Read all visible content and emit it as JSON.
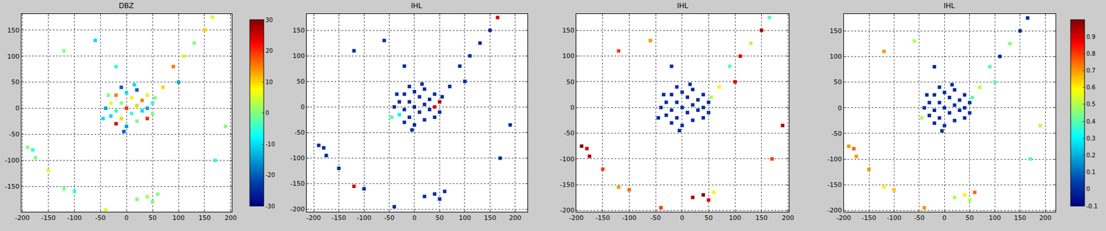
{
  "chart_data": [
    {
      "type": "scatter",
      "title": "DBZ",
      "xlim": [
        -202,
        202
      ],
      "ylim": [
        -199,
        181
      ],
      "xticks": [
        -200,
        -150,
        -100,
        -50,
        0,
        50,
        100,
        150,
        200
      ],
      "yticks": [
        -150,
        -100,
        -50,
        0,
        50,
        100,
        150
      ],
      "grid": true,
      "points": {
        "x": [
          -40,
          -30,
          -30,
          -20,
          -20,
          -20,
          -10,
          -10,
          -10,
          0,
          0,
          0,
          10,
          10,
          20,
          20,
          20,
          30,
          30,
          40,
          40,
          40,
          50,
          50,
          -45,
          -5,
          15,
          -35,
          55,
          70,
          90,
          110,
          130,
          150,
          165,
          -120,
          -60,
          -20,
          100,
          -190,
          -180,
          -175,
          -150,
          -120,
          -100,
          20,
          40,
          50,
          -40,
          60,
          190,
          170
        ],
        "y": [
          0,
          10,
          -15,
          25,
          -5,
          -30,
          40,
          10,
          -20,
          30,
          0,
          -35,
          20,
          -10,
          35,
          5,
          -25,
          15,
          -5,
          25,
          0,
          -20,
          10,
          -10,
          -20,
          -45,
          45,
          25,
          20,
          40,
          80,
          100,
          125,
          150,
          175,
          110,
          130,
          80,
          50,
          -75,
          -80,
          -95,
          -120,
          -155,
          -160,
          -175,
          -170,
          -180,
          -195,
          -165,
          -35,
          -100
        ],
        "values": [
          -15,
          5,
          -10,
          15,
          -5,
          25,
          -20,
          0,
          10,
          -10,
          20,
          -15,
          5,
          -5,
          -20,
          10,
          0,
          15,
          -10,
          5,
          -15,
          20,
          -5,
          0,
          -10,
          -20,
          -10,
          0,
          0,
          10,
          15,
          5,
          0,
          10,
          5,
          0,
          -10,
          -5,
          -15,
          0,
          -5,
          0,
          5,
          0,
          -5,
          0,
          2,
          0,
          5,
          0,
          0,
          -5
        ]
      },
      "colorbar": {
        "range": [
          -30,
          30
        ],
        "ticks": [
          -30,
          -20,
          -10,
          0,
          10,
          20,
          30
        ]
      }
    },
    {
      "type": "scatter",
      "title": "IHL",
      "xlim": [
        -214,
        224
      ],
      "ylim": [
        -205,
        182
      ],
      "xticks": [
        -200,
        -150,
        -100,
        -50,
        0,
        50,
        100,
        150,
        200
      ],
      "yticks": [
        -200,
        -150,
        -100,
        -50,
        0,
        50,
        100,
        150
      ],
      "grid": true,
      "points": {
        "x": [
          -40,
          -30,
          -30,
          -20,
          -20,
          -20,
          -10,
          -10,
          -10,
          0,
          0,
          0,
          10,
          10,
          20,
          20,
          20,
          30,
          30,
          40,
          40,
          40,
          50,
          50,
          -45,
          -5,
          15,
          -35,
          55,
          70,
          90,
          110,
          130,
          150,
          165,
          -120,
          -60,
          -20,
          100,
          -190,
          -180,
          -175,
          -150,
          -120,
          -100,
          20,
          40,
          50,
          -40,
          60,
          190,
          170
        ],
        "y": [
          0,
          10,
          -15,
          25,
          -5,
          -30,
          40,
          10,
          -20,
          30,
          0,
          -35,
          20,
          -10,
          35,
          5,
          -25,
          15,
          -5,
          25,
          0,
          -20,
          10,
          -10,
          -20,
          -45,
          45,
          25,
          20,
          40,
          80,
          100,
          125,
          150,
          175,
          110,
          130,
          80,
          50,
          -75,
          -80,
          -95,
          -120,
          -155,
          -160,
          -175,
          -170,
          -180,
          -195,
          -165,
          -35,
          -100
        ],
        "values": [
          0,
          0,
          0.3,
          0,
          0,
          0,
          0,
          0,
          0,
          0,
          0,
          0,
          0,
          0,
          0,
          0,
          0,
          0,
          0,
          0,
          0.9,
          0,
          0.95,
          0,
          0.4,
          0,
          0,
          0,
          0,
          0,
          0,
          0,
          0,
          0,
          0.9,
          0,
          0,
          0,
          0,
          0,
          0,
          0,
          0,
          0.9,
          0,
          0,
          0,
          0,
          0,
          0,
          0,
          0
        ]
      },
      "color_range": [
        -0.1,
        1
      ]
    },
    {
      "type": "scatter",
      "title": "IHL",
      "xlim": [
        -200,
        202
      ],
      "ylim": [
        -203,
        182
      ],
      "xticks": [
        -200,
        -150,
        -100,
        -50,
        0,
        50,
        100,
        150,
        200
      ],
      "yticks": [
        -200,
        -150,
        -100,
        -50,
        0,
        50,
        100,
        150
      ],
      "grid": true,
      "points": {
        "x": [
          -40,
          -30,
          -30,
          -20,
          -20,
          -20,
          -10,
          -10,
          -10,
          0,
          0,
          0,
          10,
          10,
          20,
          20,
          20,
          30,
          30,
          40,
          40,
          40,
          50,
          50,
          -45,
          -5,
          15,
          -35,
          55,
          70,
          90,
          110,
          130,
          150,
          165,
          -120,
          -60,
          -20,
          100,
          -190,
          -180,
          -175,
          -150,
          -120,
          -100,
          20,
          40,
          50,
          -40,
          60,
          190,
          170
        ],
        "y": [
          0,
          10,
          -15,
          25,
          -5,
          -30,
          40,
          10,
          -20,
          30,
          0,
          -35,
          20,
          -10,
          35,
          5,
          -25,
          15,
          -5,
          25,
          0,
          -20,
          10,
          -10,
          -20,
          -45,
          45,
          25,
          20,
          40,
          80,
          100,
          125,
          150,
          175,
          110,
          130,
          80,
          50,
          -75,
          -80,
          -95,
          -120,
          -155,
          -160,
          -175,
          -170,
          -180,
          -195,
          -165,
          -35,
          -100
        ],
        "values": [
          0,
          0,
          0,
          0,
          0,
          0,
          0,
          0,
          0,
          0,
          0,
          0,
          0,
          0,
          0,
          0,
          0,
          0,
          0,
          0,
          0,
          0,
          0,
          0,
          0,
          0,
          0,
          0,
          0.5,
          0.6,
          0.4,
          0.9,
          0.5,
          0.95,
          0.4,
          0.8,
          0.7,
          0,
          0.9,
          1,
          0.9,
          0.95,
          0.8,
          0.7,
          0.75,
          0.95,
          1,
          0.9,
          0.8,
          0.6,
          0.95,
          0.8
        ]
      },
      "color_range": [
        -0.1,
        1
      ]
    },
    {
      "type": "scatter",
      "title": "IHL",
      "xlim": [
        -200,
        221
      ],
      "ylim": [
        -203,
        183
      ],
      "xticks": [
        -200,
        -150,
        -100,
        -50,
        0,
        50,
        100,
        150,
        200
      ],
      "yticks": [
        -200,
        -150,
        -100,
        -50,
        0,
        50,
        100,
        150
      ],
      "grid": true,
      "points": {
        "x": [
          -40,
          -30,
          -30,
          -20,
          -20,
          -20,
          -10,
          -10,
          -10,
          0,
          0,
          0,
          10,
          10,
          20,
          20,
          20,
          30,
          30,
          40,
          40,
          40,
          50,
          50,
          -45,
          -5,
          15,
          -35,
          55,
          70,
          90,
          110,
          130,
          150,
          165,
          -120,
          -60,
          -20,
          100,
          -190,
          -180,
          -175,
          -150,
          -120,
          -100,
          20,
          40,
          50,
          -40,
          60,
          190,
          170
        ],
        "y": [
          0,
          10,
          -15,
          25,
          -5,
          -30,
          40,
          10,
          -20,
          30,
          0,
          -35,
          20,
          -10,
          35,
          5,
          -25,
          15,
          -5,
          25,
          0,
          -20,
          10,
          -10,
          -20,
          -45,
          45,
          25,
          20,
          40,
          80,
          100,
          125,
          150,
          175,
          110,
          130,
          80,
          50,
          -75,
          -80,
          -95,
          -120,
          -155,
          -160,
          -175,
          -170,
          -180,
          -195,
          -165,
          -35,
          -100
        ],
        "values": [
          0,
          0,
          0,
          0,
          0,
          0,
          0,
          0,
          0,
          0,
          0,
          0,
          0,
          0,
          0,
          0,
          0,
          0,
          0,
          0,
          0,
          0,
          0,
          0,
          0.5,
          0,
          0,
          0,
          0.4,
          0.5,
          0.4,
          0,
          0.45,
          0,
          0,
          0.7,
          0.5,
          0,
          0.4,
          0.7,
          0.75,
          0.7,
          0.7,
          0.6,
          0.65,
          0.5,
          0.6,
          0.5,
          0.7,
          0.75,
          0.5,
          0.4
        ]
      },
      "colorbar": {
        "range": [
          -0.1,
          1
        ],
        "ticks": [
          -0.1,
          0,
          0.1,
          0.2,
          0.3,
          0.4,
          0.5,
          0.6,
          0.7,
          0.8,
          0.9
        ]
      }
    }
  ]
}
